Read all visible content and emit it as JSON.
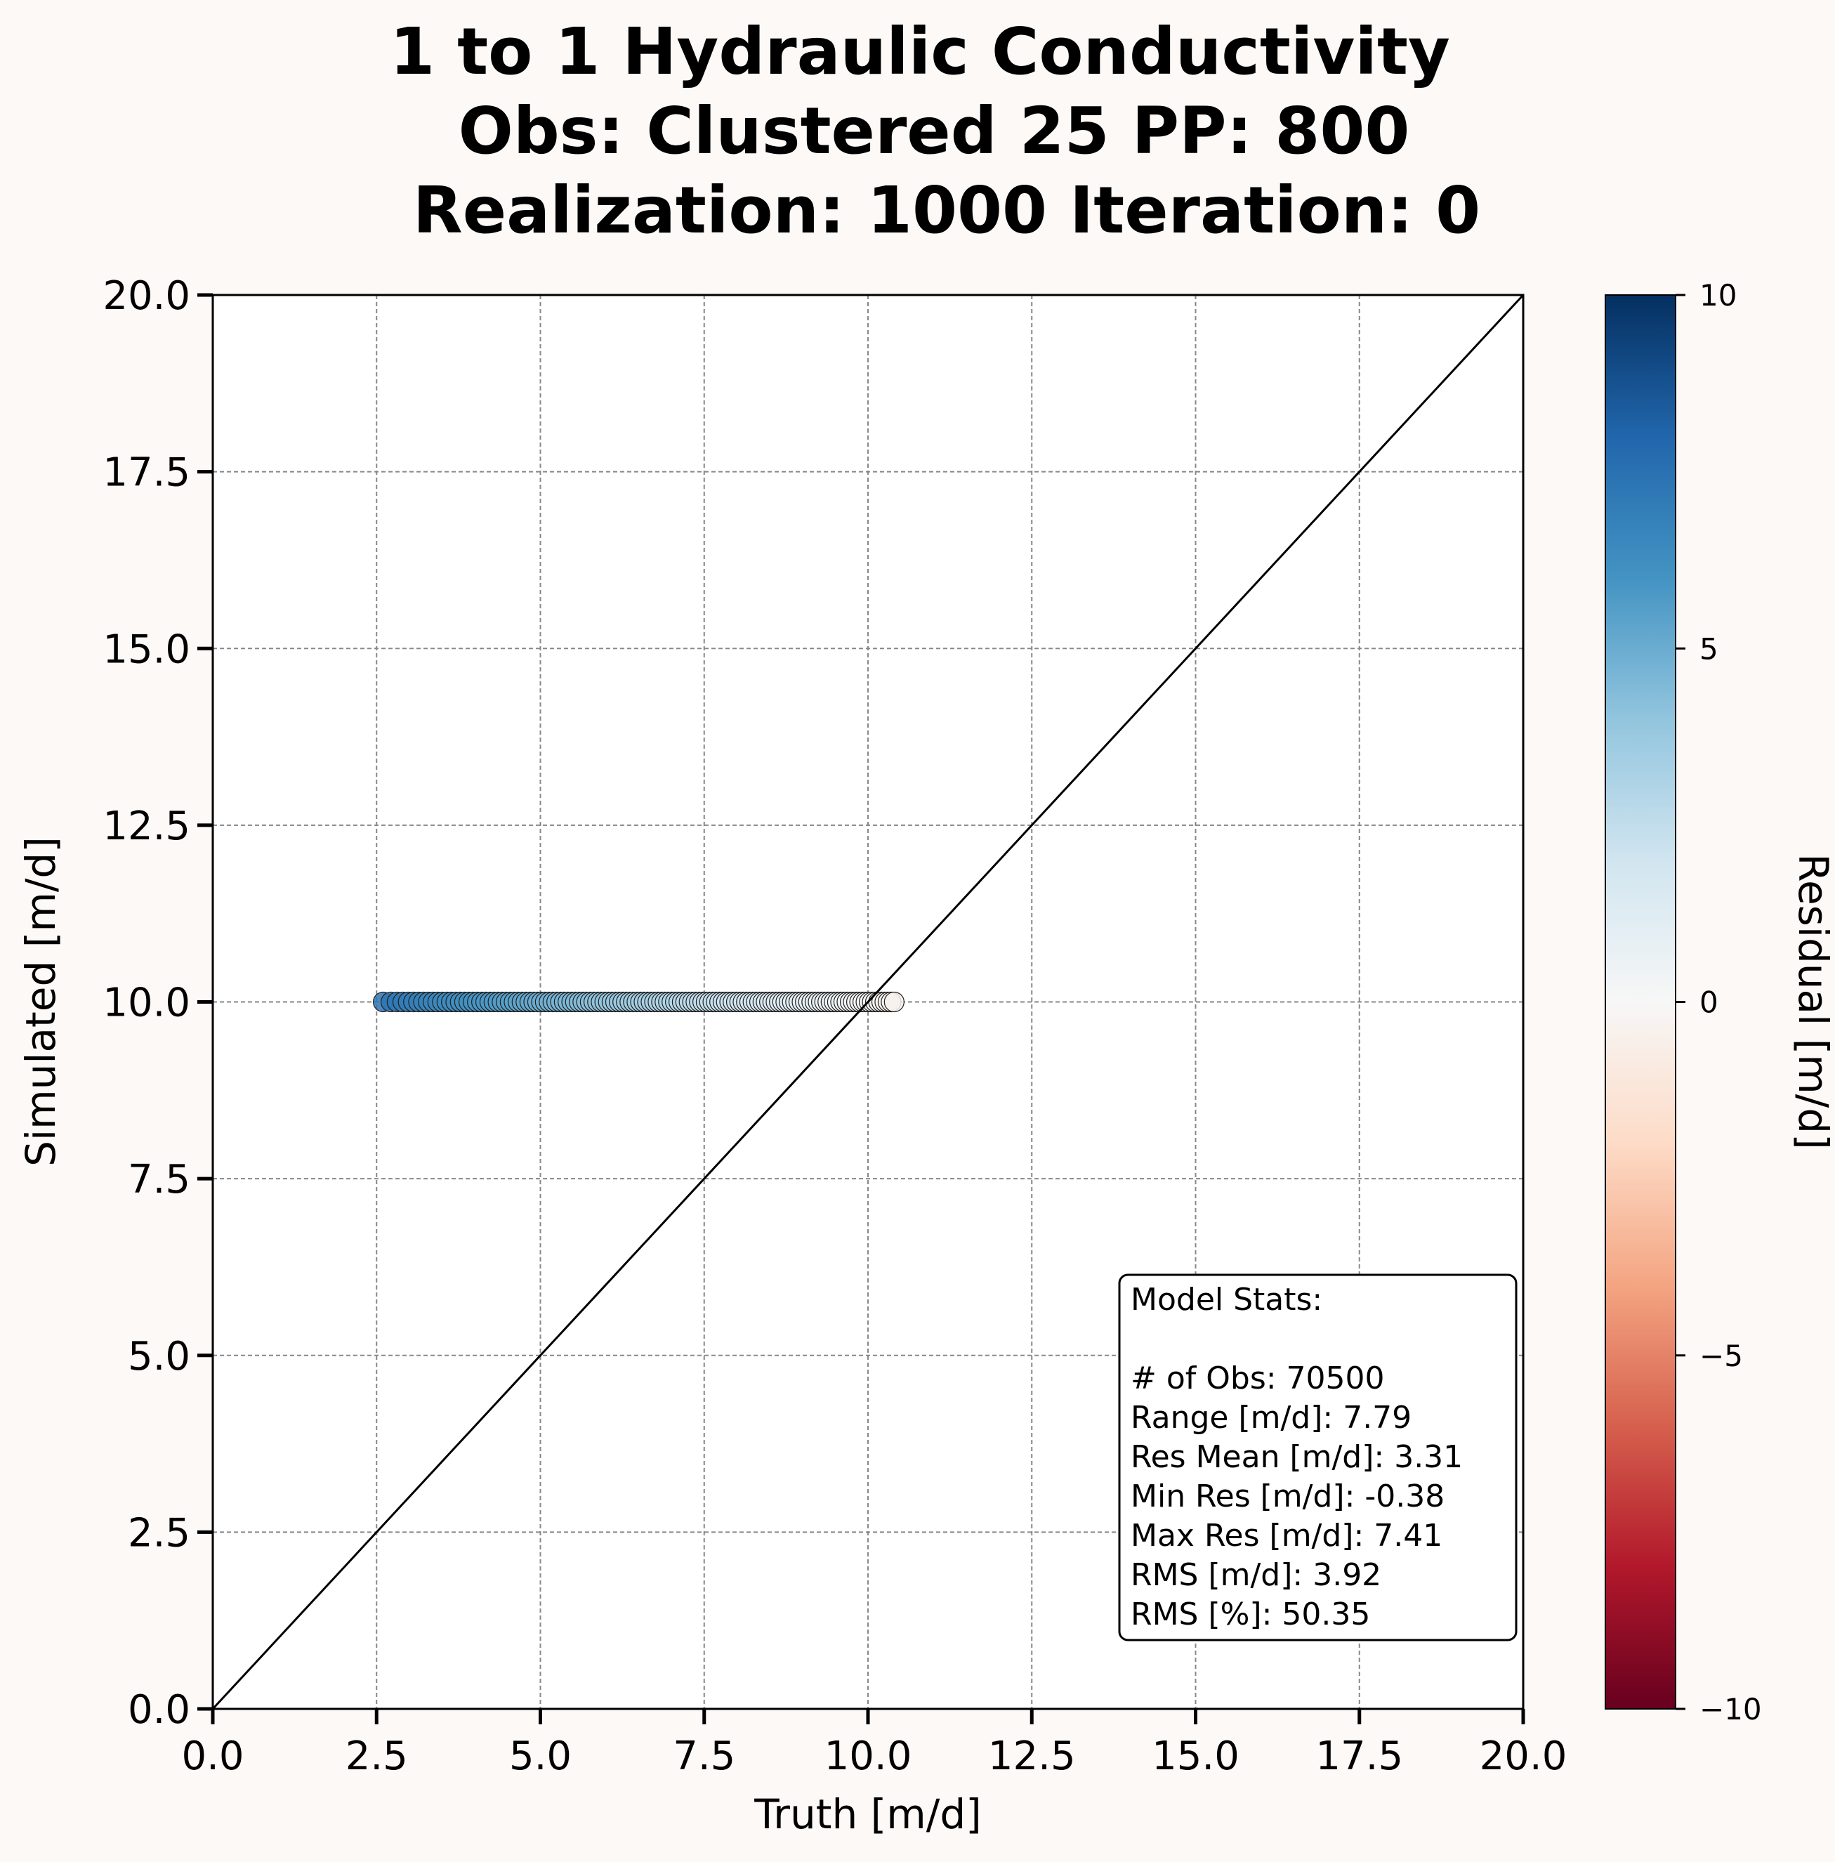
{
  "chart_data": {
    "type": "scatter",
    "title": [
      "1 to 1 Hydraulic Conductivity",
      "Obs: Clustered 25   PP: 800",
      "Realization: 1000  Iteration: 0"
    ],
    "xlabel": "Truth [m/d]",
    "ylabel": "Simulated [m/d]",
    "xlim": [
      0,
      20
    ],
    "ylim": [
      0,
      20
    ],
    "xticks": [
      "0.0",
      "2.5",
      "5.0",
      "7.5",
      "10.0",
      "12.5",
      "15.0",
      "17.5",
      "20.0"
    ],
    "yticks": [
      "0.0",
      "2.5",
      "5.0",
      "7.5",
      "10.0",
      "12.5",
      "15.0",
      "17.5",
      "20.0"
    ],
    "grid": true,
    "one_to_one_line": true,
    "simulated_value": 10.0,
    "truth_range": [
      2.6,
      10.4
    ],
    "colorbar": {
      "label": "Residual [m/d]",
      "colormap": "RdBu",
      "range": [
        -10,
        10
      ],
      "ticks": [
        {
          "value": 10,
          "label": "10"
        },
        {
          "value": 5,
          "label": "5"
        },
        {
          "value": 0,
          "label": "0"
        },
        {
          "value": -5,
          "label": "−5"
        },
        {
          "value": -10,
          "label": "−10"
        }
      ]
    },
    "stats_box": {
      "placement": "bottom-right",
      "lines": [
        "Model Stats:",
        "",
        "# of Obs: 70500",
        "Range [m/d]: 7.79",
        "Res Mean [m/d]: 3.31",
        "Min Res [m/d]: -0.38",
        "Max Res [m/d]: 7.41",
        "RMS [m/d]: 3.92",
        "RMS [%]: 50.35"
      ]
    }
  }
}
